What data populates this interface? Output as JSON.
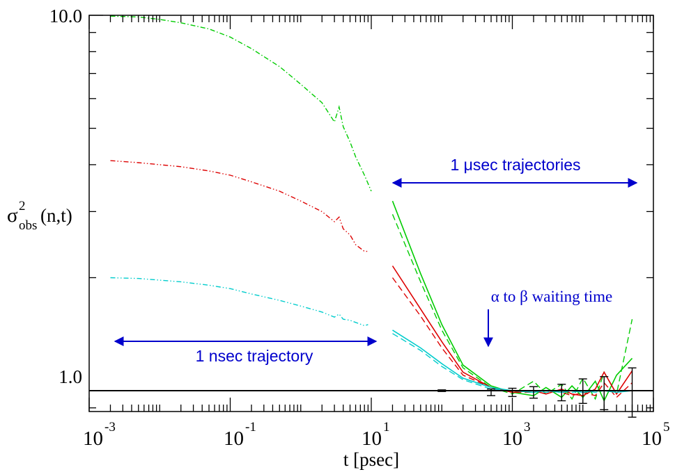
{
  "chart_data": {
    "type": "line",
    "x_scale": "log",
    "y_scale": "log",
    "xlim": [
      0.001,
      100000
    ],
    "ylim": [
      0.88,
      10.0
    ],
    "grid": false,
    "xlabel": "t [psec]",
    "ylabel": {
      "base": "σ",
      "sup": "2",
      "sub": "obs",
      "tail": "(n,t)"
    },
    "x_ticks": [
      {
        "mant": "10",
        "exp": "-3",
        "value": 0.001
      },
      {
        "mant": "10",
        "exp": "-1",
        "value": 0.1
      },
      {
        "mant": "10",
        "exp": "1",
        "value": 10
      },
      {
        "mant": "10",
        "exp": "3",
        "value": 1000
      },
      {
        "mant": "10",
        "exp": "5",
        "value": 100000
      }
    ],
    "y_ticks": [
      {
        "label": "1.0",
        "value": 1.0
      },
      {
        "label": "10.0",
        "value": 10.0
      }
    ],
    "annotations": {
      "nsec": "1 nsec trajectory",
      "usec": "1 μsec trajectories",
      "waiting": "α to β waiting time"
    },
    "reference_line": 1.0,
    "series": [
      {
        "color": "#00cc00",
        "style": "dashdot",
        "x": [
          0.002,
          0.005,
          0.01,
          0.02,
          0.05,
          0.1,
          0.2,
          0.5,
          1,
          2,
          3,
          3.5,
          4,
          5,
          6,
          8,
          10
        ],
        "y": [
          9.95,
          9.9,
          9.75,
          9.55,
          9.2,
          8.75,
          8.15,
          7.3,
          6.55,
          5.85,
          5.2,
          5.7,
          5.05,
          4.6,
          4.2,
          3.75,
          3.4
        ]
      },
      {
        "color": "#dd0000",
        "style": "dashdotdot",
        "x": [
          0.002,
          0.005,
          0.01,
          0.02,
          0.05,
          0.1,
          0.2,
          0.5,
          1,
          2,
          3,
          3.5,
          4,
          5,
          6,
          8,
          9
        ],
        "y": [
          4.1,
          4.05,
          4.0,
          3.95,
          3.85,
          3.75,
          3.6,
          3.4,
          3.2,
          3.0,
          2.82,
          2.9,
          2.7,
          2.6,
          2.45,
          2.35,
          2.35
        ]
      },
      {
        "color": "#00cccc",
        "style": "dashdotdot",
        "x": [
          0.002,
          0.005,
          0.01,
          0.02,
          0.05,
          0.1,
          0.2,
          0.5,
          1,
          2,
          3,
          3.5,
          4,
          5,
          6,
          8,
          9
        ],
        "y": [
          2.0,
          1.99,
          1.97,
          1.95,
          1.91,
          1.87,
          1.81,
          1.74,
          1.68,
          1.62,
          1.57,
          1.6,
          1.55,
          1.54,
          1.52,
          1.49,
          1.5
        ]
      },
      {
        "color": "#00cc00",
        "style": "solid",
        "x": [
          20,
          50,
          100,
          200,
          500,
          1000,
          2000,
          3000,
          5000,
          7000,
          10000,
          15000,
          20000,
          30000,
          50000
        ],
        "y": [
          3.2,
          2.05,
          1.5,
          1.17,
          1.03,
          0.99,
          0.97,
          1.02,
          0.96,
          1.03,
          0.96,
          1.06,
          0.94,
          1.1,
          1.22
        ]
      },
      {
        "color": "#00cc00",
        "style": "dashed",
        "x": [
          20,
          50,
          100,
          200,
          500,
          1000,
          2000,
          3000,
          5000,
          7000,
          10000,
          15000,
          20000,
          30000,
          50000
        ],
        "y": [
          2.95,
          1.95,
          1.45,
          1.15,
          1.02,
          0.98,
          1.06,
          0.98,
          1.04,
          0.95,
          1.08,
          0.95,
          1.12,
          0.98,
          1.55
        ]
      },
      {
        "color": "#dd0000",
        "style": "solid",
        "x": [
          20,
          50,
          100,
          200,
          500,
          1000,
          2000,
          3000,
          5000,
          7000,
          10000,
          15000,
          20000,
          30000,
          50000
        ],
        "y": [
          2.15,
          1.65,
          1.35,
          1.12,
          1.02,
          0.99,
          1.0,
          0.98,
          1.01,
          0.98,
          0.97,
          1.01,
          1.12,
          0.98,
          1.13
        ]
      },
      {
        "color": "#dd0000",
        "style": "dashed",
        "x": [
          20,
          50,
          100,
          200,
          500,
          1000,
          2000,
          3000,
          5000,
          7000,
          10000,
          15000,
          20000,
          30000,
          50000
        ],
        "y": [
          2.0,
          1.58,
          1.3,
          1.1,
          1.02,
          0.99,
          0.99,
          1.0,
          0.99,
          0.97,
          0.99,
          0.97,
          1.05,
          0.96,
          1.05
        ]
      },
      {
        "color": "#00cccc",
        "style": "solid",
        "x": [
          20,
          50,
          100,
          200,
          500,
          1000,
          2000,
          3000,
          5000,
          7000,
          10000,
          15000,
          20000,
          30000,
          50000
        ],
        "y": [
          1.45,
          1.3,
          1.18,
          1.08,
          1.02,
          1.0,
          0.99,
          1.0,
          0.99,
          1.0,
          0.99,
          1.0,
          1.0,
          0.99,
          1.0
        ]
      },
      {
        "color": "#00cccc",
        "style": "dashed",
        "x": [
          20,
          50,
          100,
          200,
          500,
          1000,
          2000,
          3000,
          5000,
          7000,
          10000,
          15000,
          20000,
          30000,
          50000
        ],
        "y": [
          1.42,
          1.28,
          1.16,
          1.07,
          1.01,
          1.0,
          1.0,
          0.99,
          1.0,
          0.99,
          1.0,
          0.99,
          1.0,
          1.0,
          1.0
        ]
      }
    ],
    "error_bars": [
      {
        "x": 100,
        "y": 1.0,
        "err": 0.005
      },
      {
        "x": 500,
        "y": 0.99,
        "err": 0.02
      },
      {
        "x": 1000,
        "y": 0.99,
        "err": 0.025
      },
      {
        "x": 2000,
        "y": 0.99,
        "err": 0.035
      },
      {
        "x": 5000,
        "y": 0.99,
        "err": 0.05
      },
      {
        "x": 10000,
        "y": 1.0,
        "err": 0.075
      },
      {
        "x": 20000,
        "y": 0.99,
        "err": 0.1
      },
      {
        "x": 50000,
        "y": 1.0,
        "err": 0.15
      }
    ]
  }
}
